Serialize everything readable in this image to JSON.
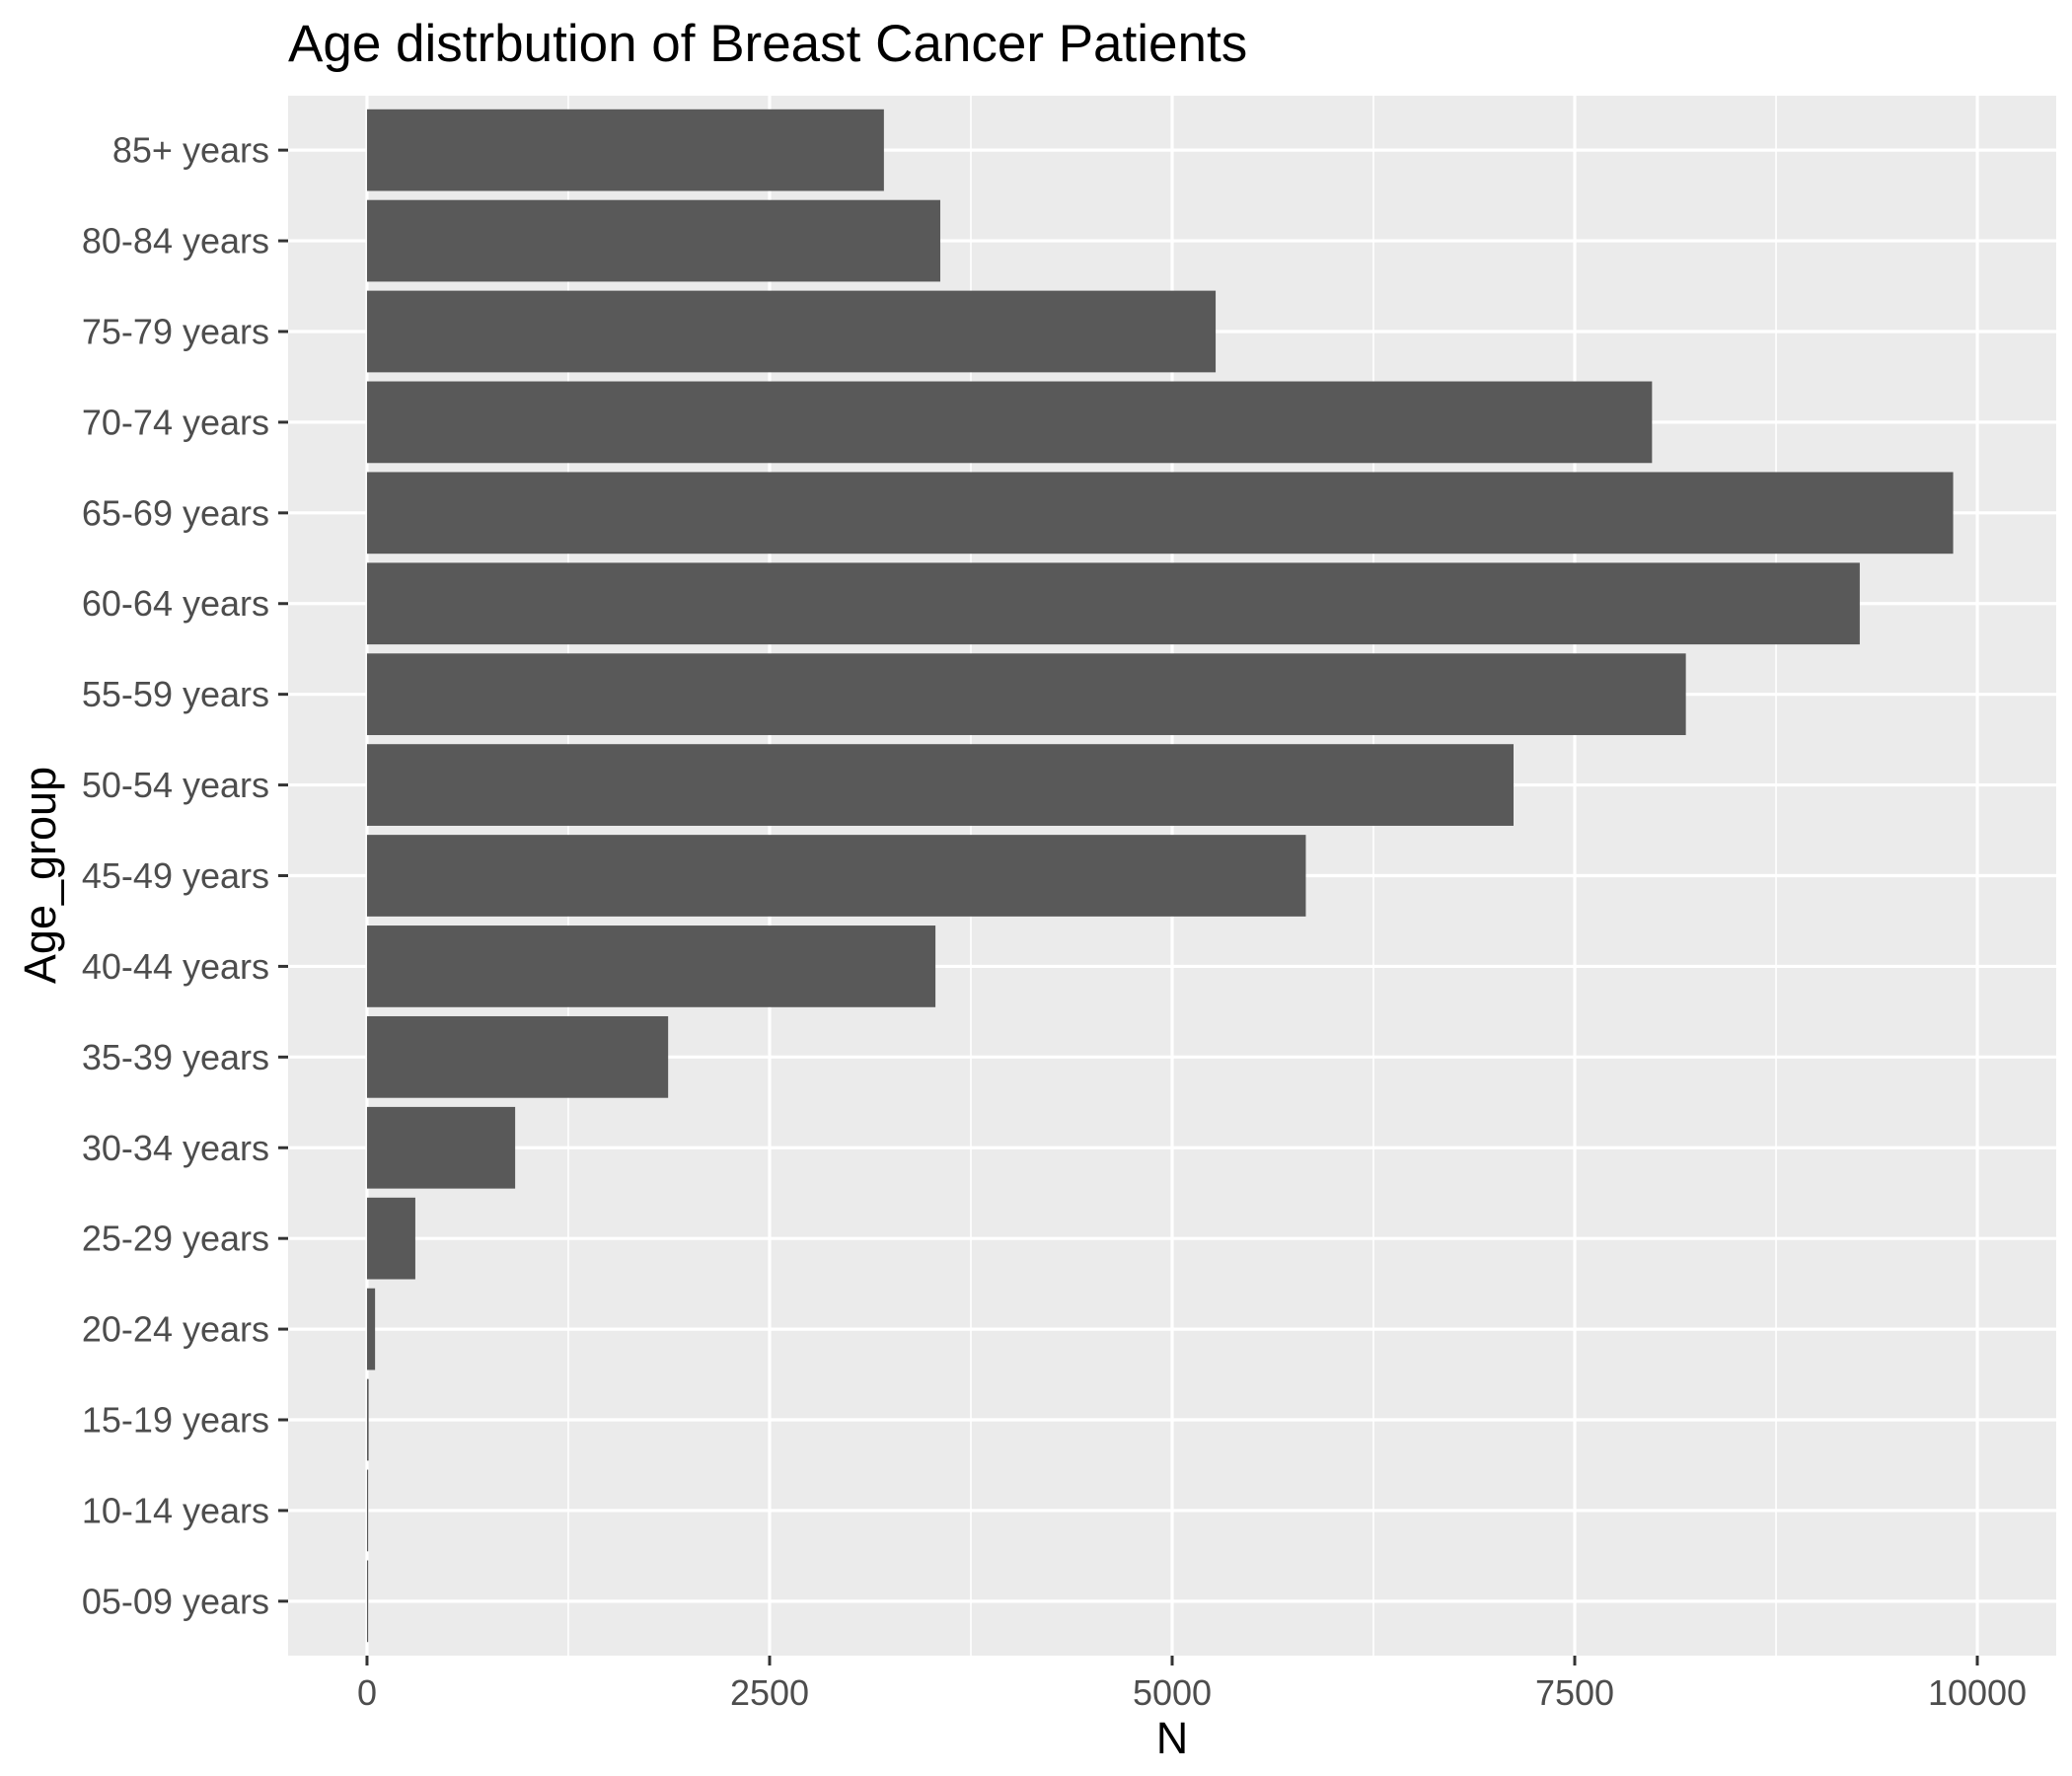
{
  "chart_data": {
    "type": "bar",
    "orientation": "horizontal",
    "title": "Age distrbution of Breast Cancer Patients",
    "xlabel": "N",
    "ylabel": "Age_group",
    "categories": [
      "05-09 years",
      "10-14 years",
      "15-19 years",
      "20-24 years",
      "25-29 years",
      "30-34 years",
      "35-39 years",
      "40-44 years",
      "45-49 years",
      "50-54 years",
      "55-59 years",
      "60-64 years",
      "65-69 years",
      "70-74 years",
      "75-79 years",
      "80-84 years",
      "85+ years"
    ],
    "values": [
      2,
      3,
      10,
      50,
      300,
      920,
      1870,
      3530,
      5830,
      7120,
      8190,
      9270,
      9850,
      7980,
      5270,
      3560,
      3210
    ],
    "xlim": [
      -490,
      10490
    ],
    "xticks": [
      0,
      2500,
      5000,
      7500,
      10000
    ],
    "xtick_labels": [
      "0",
      "2500",
      "5000",
      "7500",
      "10000"
    ],
    "grid": true,
    "colors": {
      "panel": "#ebebeb",
      "grid": "#ffffff",
      "bar": "#595959",
      "text": "#000000",
      "tick_text": "#4d4d4d",
      "tick": "#333333"
    }
  }
}
